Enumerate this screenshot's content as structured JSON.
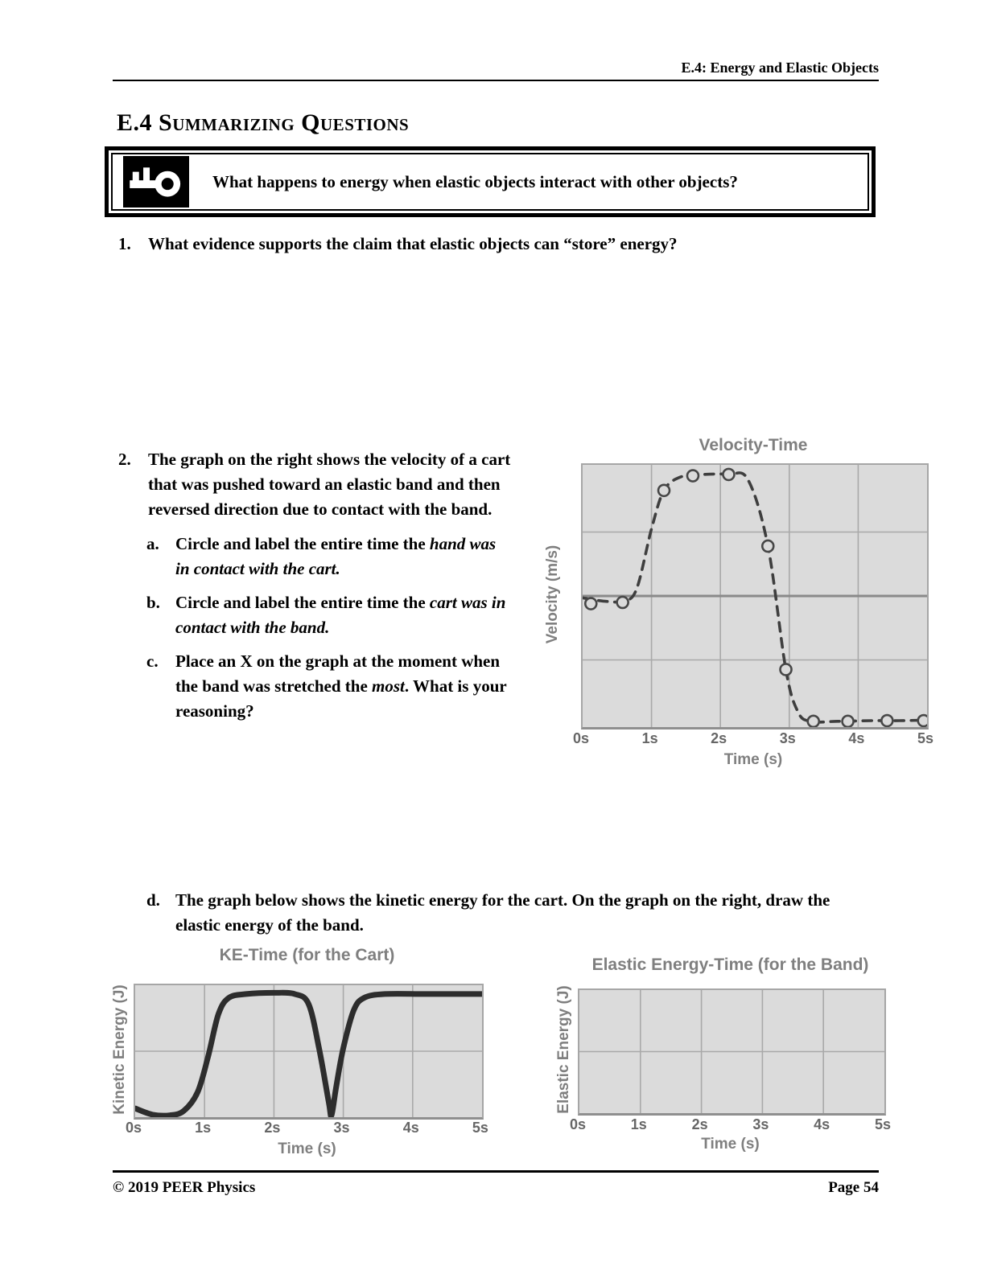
{
  "page": {
    "header": "E.4: Energy and Elastic Objects",
    "title": "E.4 Summarizing Questions",
    "key_question": "What happens to energy when elastic objects interact with other objects?",
    "footer_left": "© 2019 PEER Physics",
    "footer_right": "Page 54"
  },
  "questions": {
    "q1": {
      "number": "1.",
      "text": "What evidence supports the claim that elastic objects can “store” energy?"
    },
    "q2": {
      "number": "2.",
      "text": "The graph on the right shows the velocity of a cart that was pushed toward an elastic band and then reversed direction due to contact with the band.",
      "items": [
        {
          "marker": "a.",
          "pre": "Circle and label the entire time the ",
          "emph": "hand",
          "post": " was in contact with the cart."
        },
        {
          "marker": "b.",
          "pre": "Circle and label the entire time the ",
          "emph": "cart",
          "post": " was in contact with the band."
        },
        {
          "marker": "c.",
          "pre": "Place an X on the graph at the moment when the band was stretched the ",
          "emph": "most",
          "post": ". What is your reasoning?"
        }
      ]
    },
    "qd": {
      "marker": "d.",
      "text": "The graph below shows the kinetic energy for the cart.  On the graph on the right, draw the elastic energy of the band."
    }
  },
  "colors": {
    "plot_background": "#dbdbdb",
    "gridline": "#a9a9a9",
    "zero_line": "#8a8a8a",
    "chart_label_gray": "#7f7f7f",
    "velocity_curve": "#3e3e3e",
    "ke_curve": "#2d2d2d"
  },
  "chart_data": [
    {
      "type": "scatter",
      "title": "Velocity-Time",
      "xlabel": "Time (s)",
      "ylabel": "Velocity (m/s)",
      "x_ticks": [
        "0s",
        "1s",
        "2s",
        "3s",
        "4s",
        "5s"
      ],
      "xlim": [
        0,
        5
      ],
      "ylim": [
        -2.05,
        2.05
      ],
      "grid": {
        "v": [
          1,
          2,
          3,
          4
        ],
        "h": [
          1,
          -1
        ],
        "zero": 0
      },
      "line_style": "dashed",
      "marker": "open-circle",
      "style": {
        "color": "#3e3e3e",
        "width": 3.6,
        "dash": "11 9",
        "marker_r": 7,
        "marker_fill": "#dbdbdb",
        "marker_stroke": "#474747"
      },
      "curve": [
        [
          0,
          -0.03
        ],
        [
          0.3,
          -0.08
        ],
        [
          0.58,
          -0.08
        ],
        [
          0.78,
          0.1
        ],
        [
          1.0,
          1.05
        ],
        [
          1.18,
          1.65
        ],
        [
          1.42,
          1.86
        ],
        [
          1.75,
          1.9
        ],
        [
          2.12,
          1.9
        ],
        [
          2.4,
          1.82
        ],
        [
          2.69,
          0.78
        ],
        [
          2.95,
          -1.15
        ],
        [
          3.12,
          -1.8
        ],
        [
          3.3,
          -1.96
        ],
        [
          3.7,
          -1.96
        ],
        [
          4.2,
          -1.95
        ],
        [
          4.6,
          -1.95
        ],
        [
          5,
          -1.94
        ]
      ],
      "markers": [
        [
          0.12,
          -0.12
        ],
        [
          0.58,
          -0.1
        ],
        [
          1.18,
          1.65
        ],
        [
          1.6,
          1.88
        ],
        [
          2.12,
          1.9
        ],
        [
          2.69,
          0.78
        ],
        [
          2.95,
          -1.15
        ],
        [
          3.35,
          -1.96
        ],
        [
          3.85,
          -1.96
        ],
        [
          4.42,
          -1.95
        ],
        [
          4.95,
          -1.95
        ]
      ]
    },
    {
      "type": "line",
      "title": "KE-Time (for the Cart)",
      "xlabel": "Time (s)",
      "ylabel": "Kinetic Energy (J)",
      "x_ticks": [
        "0s",
        "1s",
        "2s",
        "3s",
        "4s",
        "5s"
      ],
      "xlim": [
        0,
        5
      ],
      "ylim": [
        0,
        1.05
      ],
      "grid": {
        "v": [
          1,
          2,
          3,
          4
        ],
        "h": [
          0.525
        ]
      },
      "line_style": "solid",
      "style": {
        "color": "#2d2d2d",
        "width": 7
      },
      "curve": [
        [
          0,
          0.07
        ],
        [
          0.25,
          0.02
        ],
        [
          0.5,
          0.015
        ],
        [
          0.7,
          0.05
        ],
        [
          0.9,
          0.2
        ],
        [
          1.05,
          0.48
        ],
        [
          1.2,
          0.82
        ],
        [
          1.35,
          0.95
        ],
        [
          1.6,
          0.98
        ],
        [
          2.0,
          0.99
        ],
        [
          2.3,
          0.98
        ],
        [
          2.5,
          0.9
        ],
        [
          2.65,
          0.55
        ],
        [
          2.79,
          0.12
        ],
        [
          2.83,
          0.015
        ],
        [
          2.9,
          0.25
        ],
        [
          3.0,
          0.55
        ],
        [
          3.15,
          0.85
        ],
        [
          3.3,
          0.95
        ],
        [
          3.6,
          0.98
        ],
        [
          4.2,
          0.98
        ],
        [
          5,
          0.98
        ]
      ],
      "markers": []
    },
    {
      "type": "line",
      "title": "Elastic Energy-Time (for the Band)",
      "xlabel": "Time (s)",
      "ylabel": "Elastic Energy (J)",
      "x_ticks": [
        "0s",
        "1s",
        "2s",
        "3s",
        "4s",
        "5s"
      ],
      "xlim": [
        0,
        5
      ],
      "ylim": [
        0,
        1
      ],
      "grid": {
        "v": [
          1,
          2,
          3,
          4
        ],
        "h": [
          0.5
        ]
      },
      "line_style": "none",
      "style": {},
      "curve": [],
      "markers": []
    }
  ]
}
